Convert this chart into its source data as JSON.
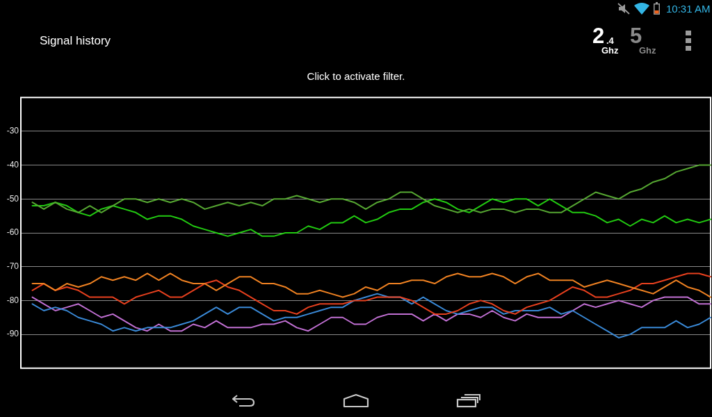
{
  "chart_data": {
    "type": "line",
    "title": "Signal history",
    "subtitle": "Click to activate filter.",
    "annotations": [
      "2.4 Ghz",
      "5 Ghz",
      "10:31 AM"
    ],
    "categories": [
      null,
      null,
      null,
      null,
      null,
      null,
      null,
      null,
      null,
      null,
      null,
      null,
      null,
      null,
      null,
      null,
      null,
      null,
      null,
      null,
      null,
      null,
      null,
      null,
      null,
      null,
      null,
      null,
      null,
      null,
      null,
      null,
      null,
      null,
      null,
      null,
      null,
      null,
      null,
      null,
      null,
      null,
      null,
      null,
      null,
      null,
      null,
      null,
      null,
      null,
      null,
      null,
      null,
      null,
      null,
      null,
      null,
      null,
      null,
      null,
      null
    ],
    "ylim": [
      -100,
      -20
    ],
    "yticks": [
      -90,
      -80,
      -70,
      -60,
      -50,
      -40,
      -30
    ],
    "grid": "y",
    "marker": "none",
    "line_style": "solid",
    "series": [
      {
        "color": "#56a832",
        "values": [
          null,
          -51,
          -53,
          -51,
          -53,
          -54,
          -52,
          -54,
          -52,
          -50,
          -50,
          -51,
          -50,
          -51,
          -50,
          -51,
          -53,
          -52,
          -51,
          -52,
          -51,
          -52,
          -50,
          -50,
          -49,
          -50,
          -51,
          -50,
          -50,
          -51,
          -53,
          -51,
          -50,
          -48,
          -48,
          -50,
          -52,
          -53,
          -54,
          -53,
          -54,
          -53,
          -53,
          -54,
          -53,
          -53,
          -54,
          -54,
          -52,
          -50,
          -48,
          -49,
          -50,
          -48,
          -47,
          -45,
          -44,
          -42,
          -41,
          -40,
          -40
        ]
      },
      {
        "color": "#22cc11",
        "values": [
          null,
          -52,
          -52,
          -51,
          -52,
          -54,
          -55,
          -53,
          -52,
          -53,
          -54,
          -56,
          -55,
          -55,
          -56,
          -58,
          -59,
          -60,
          -61,
          -60,
          -59,
          -61,
          -61,
          -60,
          -60,
          -58,
          -59,
          -57,
          -57,
          -55,
          -57,
          -56,
          -54,
          -53,
          -53,
          -51,
          -50,
          -51,
          -53,
          -54,
          -52,
          -50,
          -51,
          -50,
          -50,
          -52,
          -50,
          -52,
          -54,
          -54,
          -55,
          -57,
          -56,
          -58,
          -56,
          -57,
          -55,
          -57,
          -56,
          -57,
          -56
        ]
      },
      {
        "color": "#f08222",
        "values": [
          null,
          -75,
          -75,
          -77,
          -75,
          -76,
          -75,
          -73,
          -74,
          -73,
          -74,
          -72,
          -74,
          -72,
          -74,
          -75,
          -75,
          -77,
          -75,
          -73,
          -73,
          -75,
          -75,
          -76,
          -78,
          -78,
          -77,
          -78,
          -79,
          -78,
          -76,
          -77,
          -75,
          -75,
          -74,
          -74,
          -75,
          -73,
          -72,
          -73,
          -73,
          -72,
          -73,
          -75,
          -73,
          -72,
          -74,
          -74,
          -74,
          -76,
          -75,
          -74,
          -75,
          -76,
          -77,
          -78,
          -76,
          -74,
          -76,
          -77,
          -79
        ]
      },
      {
        "color": "#e8401e",
        "values": [
          null,
          -77,
          -75,
          -77,
          -76,
          -77,
          -79,
          -79,
          -79,
          -81,
          -79,
          -78,
          -77,
          -79,
          -79,
          -77,
          -75,
          -74,
          -76,
          -77,
          -79,
          -81,
          -83,
          -83,
          -84,
          -82,
          -81,
          -81,
          -81,
          -80,
          -80,
          -79,
          -79,
          -79,
          -80,
          -82,
          -84,
          -84,
          -83,
          -81,
          -80,
          -81,
          -83,
          -84,
          -82,
          -81,
          -80,
          -78,
          -76,
          -77,
          -79,
          -79,
          -78,
          -77,
          -75,
          -75,
          -74,
          -73,
          -72,
          -72,
          -73
        ]
      },
      {
        "color": "#3a8ad8",
        "values": [
          null,
          -81,
          -83,
          -82,
          -83,
          -85,
          -86,
          -87,
          -89,
          -88,
          -89,
          -88,
          -88,
          -88,
          -87,
          -86,
          -84,
          -82,
          -84,
          -82,
          -82,
          -84,
          -86,
          -85,
          -85,
          -84,
          -83,
          -82,
          -82,
          -80,
          -79,
          -78,
          -79,
          -79,
          -81,
          -79,
          -81,
          -83,
          -84,
          -83,
          -82,
          -82,
          -84,
          -83,
          -83,
          -83,
          -82,
          -84,
          -83,
          -85,
          -87,
          -89,
          -91,
          -90,
          -88,
          -88,
          -88,
          -86,
          -88,
          -87,
          -85
        ]
      },
      {
        "color": "#c270d4",
        "values": [
          null,
          -79,
          -81,
          -83,
          -82,
          -81,
          -83,
          -85,
          -84,
          -86,
          -88,
          -89,
          -87,
          -89,
          -89,
          -87,
          -88,
          -86,
          -88,
          -88,
          -88,
          -87,
          -87,
          -86,
          -88,
          -89,
          -87,
          -85,
          -85,
          -87,
          -87,
          -85,
          -84,
          -84,
          -84,
          -86,
          -84,
          -86,
          -84,
          -84,
          -85,
          -83,
          -85,
          -86,
          -84,
          -85,
          -85,
          -85,
          -83,
          -81,
          -82,
          -81,
          -80,
          -81,
          -82,
          -80,
          -79,
          -79,
          -79,
          -81,
          -81
        ]
      }
    ]
  }
}
